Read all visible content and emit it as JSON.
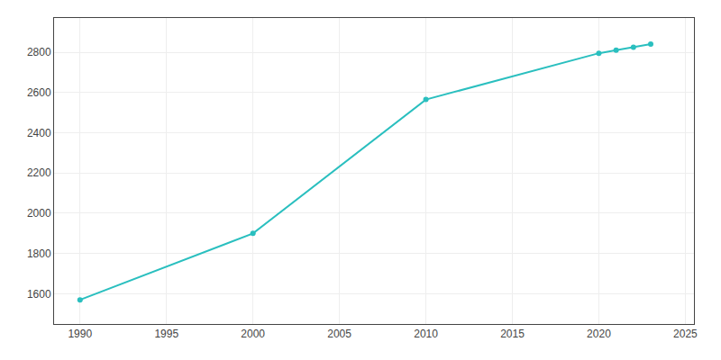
{
  "chart_data": {
    "type": "line",
    "x": [
      1990,
      2000,
      2010,
      2020,
      2021,
      2022,
      2023
    ],
    "values": [
      1570,
      1900,
      2565,
      2795,
      2810,
      2825,
      2840
    ],
    "color": "#2abfbf",
    "marker": "circle",
    "line_style": "solid",
    "xlim": [
      1988.5,
      2025.5
    ],
    "ylim": [
      1450,
      2970
    ],
    "xticks": [
      1990,
      1995,
      2000,
      2005,
      2010,
      2015,
      2020,
      2025
    ],
    "yticks": [
      1600,
      1800,
      2000,
      2200,
      2400,
      2600,
      2800
    ],
    "grid": true
  }
}
